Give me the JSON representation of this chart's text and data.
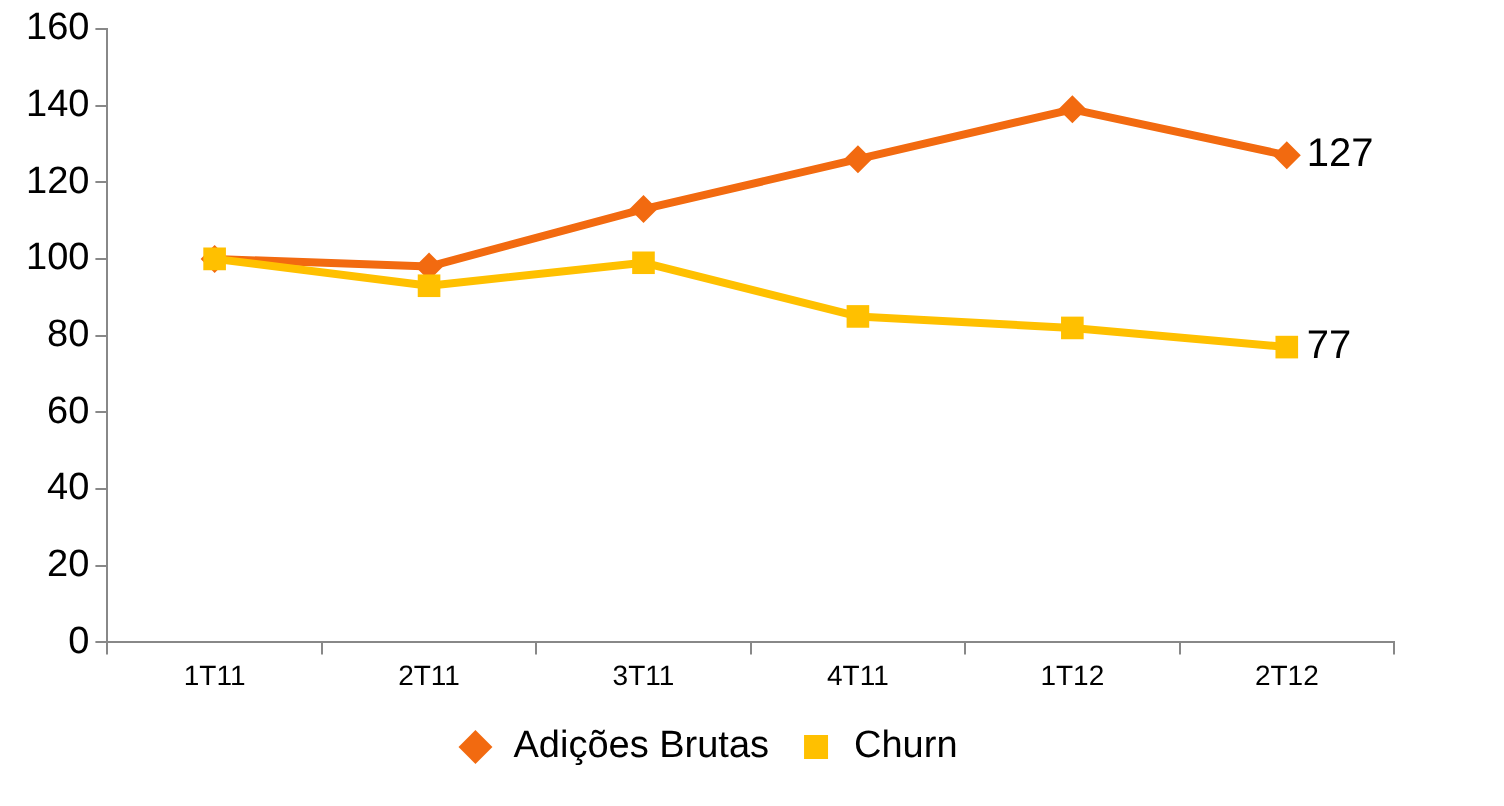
{
  "chart_data": {
    "type": "line",
    "categories": [
      "1T11",
      "2T11",
      "3T11",
      "4T11",
      "1T12",
      "2T12"
    ],
    "series": [
      {
        "name": "Adições Brutas",
        "color": "#f26a10",
        "marker": "diamond",
        "values": [
          100,
          98,
          113,
          126,
          139,
          127
        ],
        "value_labels": [
          null,
          null,
          null,
          null,
          null,
          "127"
        ]
      },
      {
        "name": "Churn",
        "color": "#ffc000",
        "marker": "square",
        "values": [
          100,
          93,
          99,
          85,
          82,
          77
        ],
        "value_labels": [
          null,
          null,
          null,
          null,
          null,
          "77"
        ]
      }
    ],
    "ylim": [
      0,
      160
    ],
    "yticks": [
      0,
      20,
      40,
      60,
      80,
      100,
      120,
      140,
      160
    ],
    "grid": false,
    "legend": "bottom",
    "line_style": "solid"
  }
}
